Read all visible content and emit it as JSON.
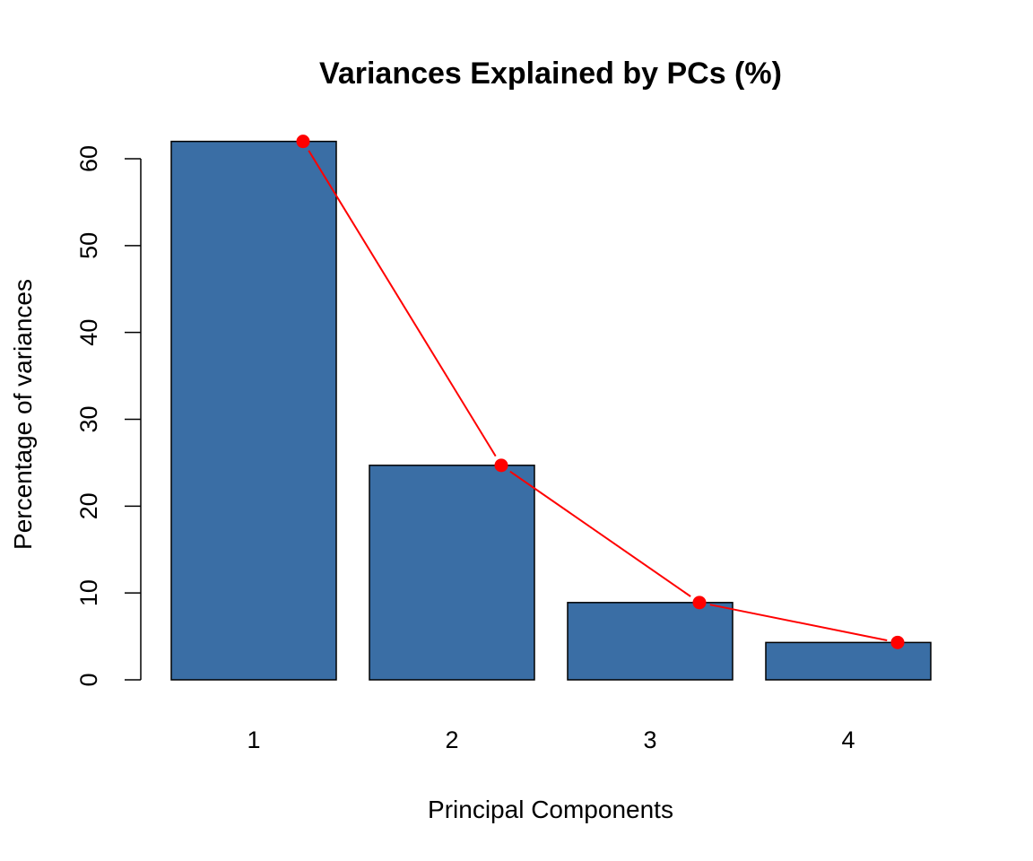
{
  "chart_data": {
    "type": "bar",
    "title": "Variances Explained by PCs (%)",
    "xlabel": "Principal Components",
    "ylabel": "Percentage of variances",
    "categories": [
      "1",
      "2",
      "3",
      "4"
    ],
    "values": [
      62.0,
      24.7,
      8.9,
      4.3
    ],
    "ylim": [
      0,
      60
    ],
    "yticks": [
      0,
      10,
      20,
      30,
      40,
      50,
      60
    ],
    "grid": false,
    "legend": "none",
    "bar_color": "#3A6EA5",
    "bar_stroke": "#000000",
    "overlay": {
      "type": "line",
      "values": [
        62.0,
        24.7,
        8.9,
        4.3
      ],
      "color": "#FF0000",
      "marker": "circle"
    }
  }
}
